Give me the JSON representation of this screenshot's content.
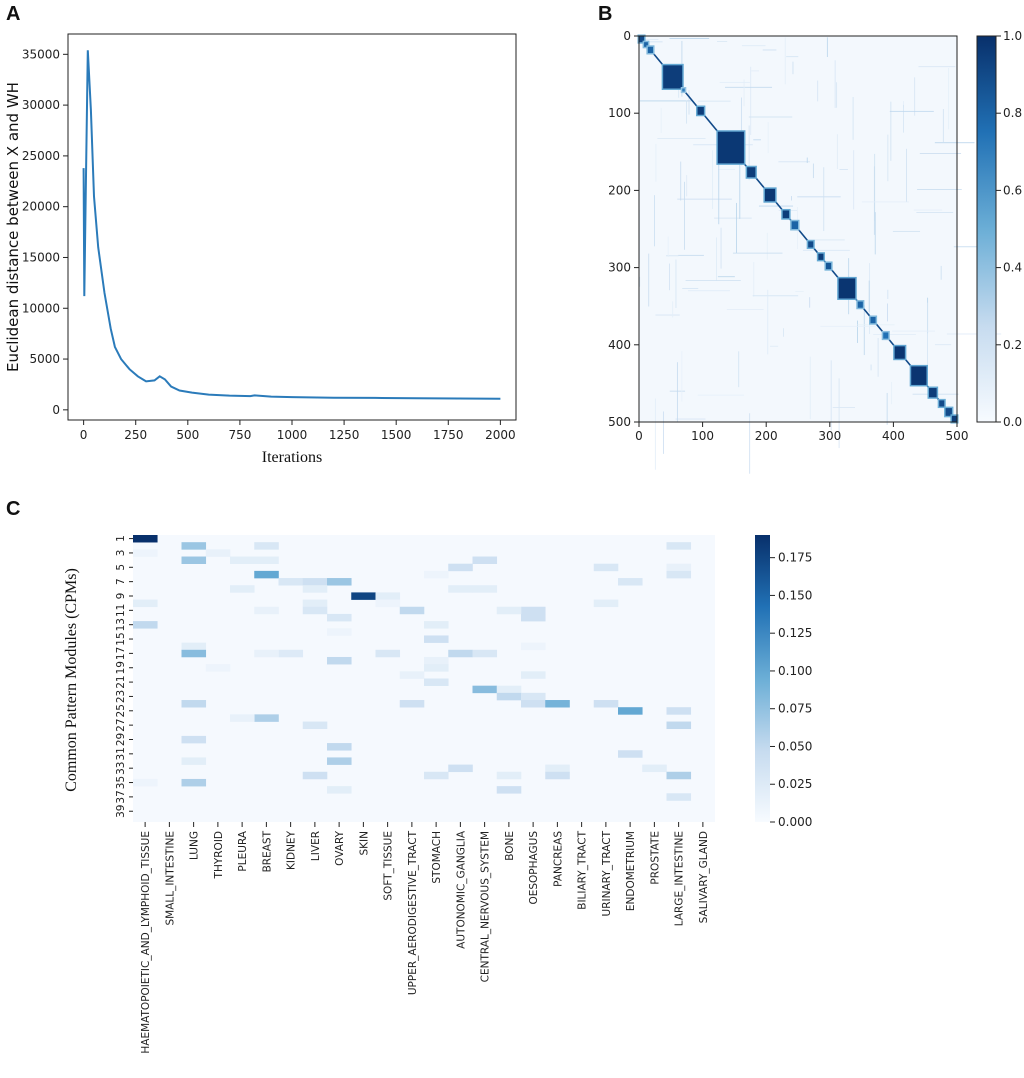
{
  "panels": {
    "a": "A",
    "b": "B",
    "c": "C"
  },
  "chart_data": [
    {
      "type": "line",
      "panel": "A",
      "title": "",
      "xlabel": "Iterations",
      "ylabel": "Euclidean distance between X and WH",
      "xlim": [
        -75,
        2075
      ],
      "ylim": [
        -1000,
        37000
      ],
      "xticks": [
        0,
        250,
        500,
        750,
        1000,
        1250,
        1500,
        1750,
        2000
      ],
      "yticks": [
        0,
        5000,
        10000,
        15000,
        20000,
        25000,
        30000,
        35000
      ],
      "color": "#2b7bba",
      "x": [
        0,
        3,
        10,
        20,
        35,
        50,
        70,
        100,
        130,
        150,
        180,
        220,
        260,
        300,
        340,
        365,
        390,
        420,
        460,
        520,
        600,
        700,
        800,
        820,
        900,
        1000,
        1200,
        1400,
        1600,
        1800,
        2000
      ],
      "y": [
        23800,
        11200,
        21000,
        35400,
        29500,
        21000,
        16000,
        11500,
        8000,
        6200,
        5000,
        4000,
        3300,
        2800,
        2900,
        3300,
        3000,
        2300,
        1900,
        1700,
        1500,
        1400,
        1350,
        1420,
        1300,
        1250,
        1200,
        1180,
        1150,
        1120,
        1100
      ]
    },
    {
      "type": "heatmap",
      "panel": "B",
      "title": "",
      "xlabel": "",
      "ylabel": "",
      "xlim": [
        0,
        500
      ],
      "ylim": [
        0,
        500
      ],
      "xticks": [
        0,
        100,
        200,
        300,
        400,
        500
      ],
      "yticks": [
        0,
        100,
        200,
        300,
        400,
        500
      ],
      "colorbar": {
        "min": 0.0,
        "max": 1.0,
        "ticks": [
          "0.0",
          "0.2",
          "0.4",
          "0.6",
          "0.8",
          "1.0"
        ]
      },
      "description_blocks": [
        {
          "start": 0,
          "end": 8,
          "value": 0.9
        },
        {
          "start": 8,
          "end": 14,
          "value": 0.8
        },
        {
          "start": 14,
          "end": 22,
          "value": 0.8
        },
        {
          "start": 38,
          "end": 68,
          "value": 0.95
        },
        {
          "start": 68,
          "end": 72,
          "value": 0.7
        },
        {
          "start": 92,
          "end": 102,
          "value": 0.95
        },
        {
          "start": 124,
          "end": 165,
          "value": 0.97
        },
        {
          "start": 170,
          "end": 183,
          "value": 0.95
        },
        {
          "start": 198,
          "end": 214,
          "value": 0.97
        },
        {
          "start": 226,
          "end": 236,
          "value": 0.95
        },
        {
          "start": 240,
          "end": 250,
          "value": 0.8
        },
        {
          "start": 266,
          "end": 274,
          "value": 0.9
        },
        {
          "start": 282,
          "end": 290,
          "value": 0.95
        },
        {
          "start": 294,
          "end": 302,
          "value": 0.85
        },
        {
          "start": 314,
          "end": 340,
          "value": 0.98
        },
        {
          "start": 344,
          "end": 352,
          "value": 0.8
        },
        {
          "start": 364,
          "end": 372,
          "value": 0.8
        },
        {
          "start": 384,
          "end": 392,
          "value": 0.75
        },
        {
          "start": 402,
          "end": 418,
          "value": 0.98
        },
        {
          "start": 428,
          "end": 452,
          "value": 0.98
        },
        {
          "start": 456,
          "end": 468,
          "value": 0.95
        },
        {
          "start": 472,
          "end": 480,
          "value": 0.9
        },
        {
          "start": 482,
          "end": 492,
          "value": 0.9
        },
        {
          "start": 492,
          "end": 500,
          "value": 0.95
        }
      ]
    },
    {
      "type": "heatmap",
      "panel": "C",
      "title": "",
      "xlabel": "",
      "ylabel": "Common Pattern Modules (CPMs)",
      "colorbar": {
        "min": 0.0,
        "max": 0.19,
        "ticks": [
          "0.000",
          "0.025",
          "0.050",
          "0.075",
          "0.100",
          "0.125",
          "0.150",
          "0.175"
        ]
      },
      "yticklabels": [
        "1",
        "3",
        "5",
        "7",
        "9",
        "11",
        "13",
        "15",
        "17",
        "19",
        "21",
        "23",
        "25",
        "27",
        "29",
        "31",
        "33",
        "35",
        "37",
        "39"
      ],
      "nrows": 40,
      "categories": [
        "HAEMATOPOIETIC_AND_LYMPHOID_TISSUE",
        "SMALL_INTESTINE",
        "LUNG",
        "THYROID",
        "PLEURA",
        "BREAST",
        "KIDNEY",
        "LIVER",
        "OVARY",
        "SKIN",
        "SOFT_TISSUE",
        "UPPER_AERODIGESTIVE_TRACT",
        "STOMACH",
        "AUTONOMIC_GANGLIA",
        "CENTRAL_NERVOUS_SYSTEM",
        "BONE",
        "OESOPHAGUS",
        "PANCREAS",
        "BILIARY_TRACT",
        "URINARY_TRACT",
        "ENDOMETRIUM",
        "PROSTATE",
        "LARGE_INTESTINE",
        "SALIVARY_GLAND"
      ],
      "cells": [
        [
          0,
          0,
          0.195
        ],
        [
          1,
          2,
          0.07
        ],
        [
          1,
          5,
          0.03
        ],
        [
          1,
          22,
          0.03
        ],
        [
          2,
          3,
          0.015
        ],
        [
          2,
          0,
          0.01
        ],
        [
          3,
          2,
          0.07
        ],
        [
          3,
          4,
          0.02
        ],
        [
          3,
          5,
          0.02
        ],
        [
          3,
          14,
          0.04
        ],
        [
          4,
          13,
          0.04
        ],
        [
          4,
          19,
          0.03
        ],
        [
          4,
          22,
          0.015
        ],
        [
          5,
          5,
          0.1
        ],
        [
          5,
          22,
          0.03
        ],
        [
          5,
          12,
          0.01
        ],
        [
          6,
          6,
          0.03
        ],
        [
          6,
          7,
          0.04
        ],
        [
          6,
          8,
          0.07
        ],
        [
          6,
          20,
          0.03
        ],
        [
          7,
          4,
          0.02
        ],
        [
          7,
          7,
          0.02
        ],
        [
          7,
          13,
          0.02
        ],
        [
          7,
          14,
          0.02
        ],
        [
          8,
          9,
          0.175
        ],
        [
          8,
          10,
          0.02
        ],
        [
          9,
          7,
          0.02
        ],
        [
          9,
          10,
          0.01
        ],
        [
          9,
          19,
          0.02
        ],
        [
          9,
          0,
          0.02
        ],
        [
          10,
          7,
          0.03
        ],
        [
          10,
          11,
          0.05
        ],
        [
          10,
          5,
          0.015
        ],
        [
          10,
          16,
          0.04
        ],
        [
          10,
          15,
          0.02
        ],
        [
          11,
          8,
          0.03
        ],
        [
          11,
          16,
          0.04
        ],
        [
          12,
          0,
          0.05
        ],
        [
          12,
          12,
          0.02
        ],
        [
          13,
          8,
          0.01
        ],
        [
          14,
          12,
          0.04
        ],
        [
          15,
          2,
          0.02
        ],
        [
          15,
          16,
          0.01
        ],
        [
          16,
          2,
          0.08
        ],
        [
          16,
          6,
          0.025
        ],
        [
          16,
          5,
          0.015
        ],
        [
          16,
          10,
          0.03
        ],
        [
          16,
          13,
          0.05
        ],
        [
          16,
          14,
          0.03
        ],
        [
          17,
          8,
          0.05
        ],
        [
          17,
          12,
          0.015
        ],
        [
          18,
          12,
          0.02
        ],
        [
          18,
          3,
          0.01
        ],
        [
          19,
          11,
          0.015
        ],
        [
          19,
          16,
          0.02
        ],
        [
          20,
          12,
          0.03
        ],
        [
          21,
          14,
          0.08
        ],
        [
          21,
          15,
          0.02
        ],
        [
          22,
          15,
          0.05
        ],
        [
          22,
          16,
          0.03
        ],
        [
          23,
          2,
          0.05
        ],
        [
          23,
          11,
          0.04
        ],
        [
          23,
          16,
          0.04
        ],
        [
          23,
          17,
          0.09
        ],
        [
          23,
          19,
          0.04
        ],
        [
          24,
          20,
          0.1
        ],
        [
          24,
          22,
          0.04
        ],
        [
          25,
          5,
          0.06
        ],
        [
          25,
          4,
          0.015
        ],
        [
          26,
          7,
          0.03
        ],
        [
          26,
          22,
          0.05
        ],
        [
          28,
          2,
          0.04
        ],
        [
          29,
          8,
          0.05
        ],
        [
          30,
          20,
          0.04
        ],
        [
          31,
          8,
          0.06
        ],
        [
          31,
          2,
          0.02
        ],
        [
          32,
          13,
          0.04
        ],
        [
          32,
          17,
          0.02
        ],
        [
          32,
          21,
          0.02
        ],
        [
          33,
          7,
          0.04
        ],
        [
          33,
          12,
          0.03
        ],
        [
          33,
          22,
          0.06
        ],
        [
          33,
          17,
          0.04
        ],
        [
          33,
          15,
          0.02
        ],
        [
          34,
          2,
          0.06
        ],
        [
          34,
          0,
          0.01
        ],
        [
          35,
          15,
          0.04
        ],
        [
          35,
          8,
          0.02
        ],
        [
          36,
          22,
          0.03
        ]
      ]
    }
  ]
}
